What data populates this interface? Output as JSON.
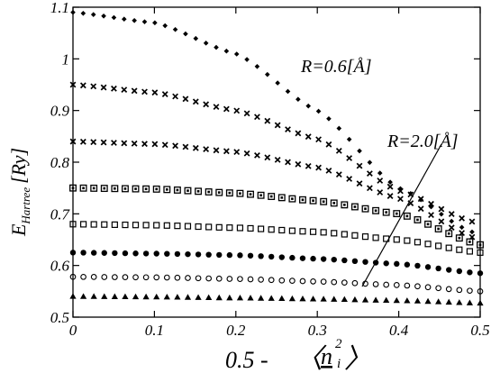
{
  "chart_data": {
    "type": "scatter",
    "title": "",
    "xlabel": {
      "prefix": "0.5 -",
      "symbol": "n",
      "subscript": "i",
      "superscript": "2"
    },
    "ylabel": {
      "symbol": "E",
      "subscript": "Hartree",
      "unit": "[Ry]"
    },
    "xlim": [
      0,
      0.5
    ],
    "ylim": [
      0.5,
      1.1
    ],
    "xticks": [
      0,
      0.1,
      0.2,
      0.3,
      0.4,
      0.5
    ],
    "xtick_labels": [
      "0",
      "0.1",
      "0.2",
      "0.3",
      "0.4",
      "0.5"
    ],
    "yticks": [
      0.5,
      0.6,
      0.7,
      0.8,
      0.9,
      1.0,
      1.1
    ],
    "ytick_labels": [
      "0.5",
      "0.6",
      "0.7",
      "0.8",
      "0.9",
      "1",
      "1.1"
    ],
    "grid": false,
    "legend": "none",
    "annotations": [
      {
        "text": "R=0.6[Å]"
      },
      {
        "text": "R=2.0[Å]"
      }
    ],
    "series": [
      {
        "marker": "diamond",
        "x_range": [
          0,
          0.49
        ],
        "count": 40,
        "values_at": {
          "x": [
            0,
            0.1,
            0.2,
            0.3,
            0.4,
            0.49
          ],
          "y": [
            1.09,
            1.07,
            1.01,
            0.9,
            0.75,
            0.665
          ]
        }
      },
      {
        "marker": "x",
        "x_range": [
          0,
          0.49
        ],
        "count": 40,
        "values_at": {
          "x": [
            0,
            0.1,
            0.2,
            0.3,
            0.4,
            0.49
          ],
          "y": [
            0.95,
            0.935,
            0.9,
            0.845,
            0.745,
            0.685
          ]
        }
      },
      {
        "marker": "x",
        "x_range": [
          0,
          0.49
        ],
        "count": 40,
        "values_at": {
          "x": [
            0,
            0.1,
            0.2,
            0.3,
            0.4,
            0.49
          ],
          "y": [
            0.84,
            0.835,
            0.82,
            0.79,
            0.73,
            0.655
          ]
        }
      },
      {
        "marker": "square-dot",
        "x_range": [
          0,
          0.5
        ],
        "count": 40,
        "values_at": {
          "x": [
            0,
            0.1,
            0.2,
            0.3,
            0.4,
            0.5
          ],
          "y": [
            0.75,
            0.748,
            0.74,
            0.725,
            0.7,
            0.64
          ]
        }
      },
      {
        "marker": "open-square",
        "x_range": [
          0,
          0.5
        ],
        "count": 40,
        "values_at": {
          "x": [
            0,
            0.1,
            0.2,
            0.3,
            0.4,
            0.5
          ],
          "y": [
            0.68,
            0.678,
            0.673,
            0.665,
            0.65,
            0.625
          ]
        }
      },
      {
        "marker": "filled-circle",
        "x_range": [
          0,
          0.5
        ],
        "count": 40,
        "values_at": {
          "x": [
            0,
            0.1,
            0.2,
            0.3,
            0.4,
            0.5
          ],
          "y": [
            0.625,
            0.623,
            0.62,
            0.613,
            0.603,
            0.585
          ]
        }
      },
      {
        "marker": "open-circle",
        "x_range": [
          0,
          0.5
        ],
        "count": 40,
        "values_at": {
          "x": [
            0,
            0.1,
            0.2,
            0.3,
            0.4,
            0.5
          ],
          "y": [
            0.578,
            0.577,
            0.574,
            0.569,
            0.562,
            0.55
          ]
        }
      },
      {
        "marker": "triangle",
        "x_range": [
          0,
          0.5
        ],
        "count": 40,
        "values_at": {
          "x": [
            0,
            0.1,
            0.2,
            0.3,
            0.4,
            0.5
          ],
          "y": [
            0.54,
            0.539,
            0.537,
            0.535,
            0.532,
            0.527
          ]
        }
      }
    ]
  }
}
